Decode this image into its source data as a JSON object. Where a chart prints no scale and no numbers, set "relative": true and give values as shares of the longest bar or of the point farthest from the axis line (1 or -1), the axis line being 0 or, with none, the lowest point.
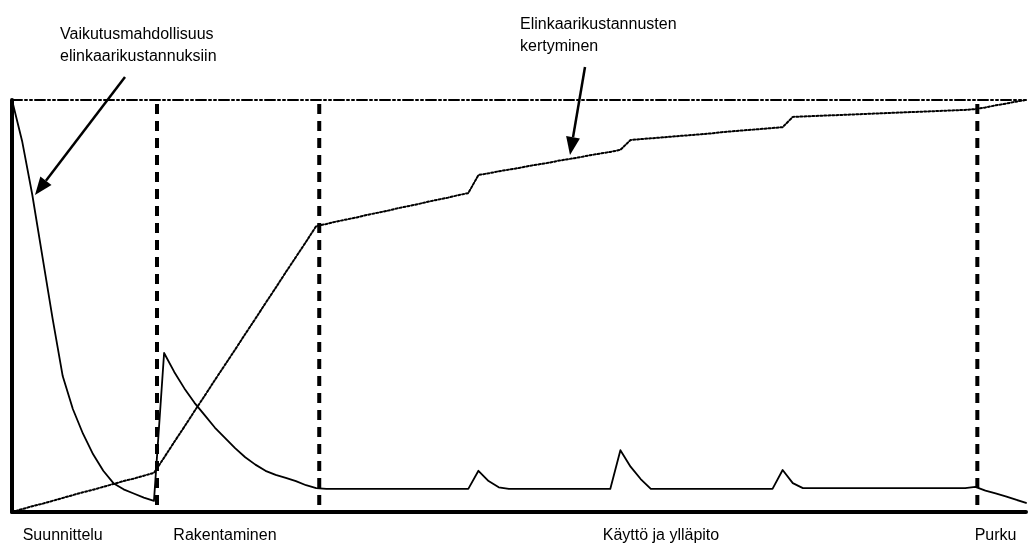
{
  "chart_data": {
    "type": "line",
    "relative": true,
    "tick_labels": "x",
    "grid": false,
    "marker": "none",
    "categories": [
      null,
      null,
      null,
      null,
      null,
      "Suunnittelu",
      null,
      null,
      null,
      null,
      null,
      null,
      null,
      null,
      null,
      null,
      null,
      null,
      null,
      null,
      null,
      "Rakentaminen",
      null,
      null,
      null,
      null,
      null,
      null,
      null,
      null,
      null,
      null,
      null,
      null,
      null,
      null,
      null,
      null,
      null,
      null,
      null,
      null,
      null,
      null,
      null,
      null,
      null,
      null,
      null,
      null,
      null,
      null,
      null,
      null,
      null,
      null,
      null,
      null,
      null,
      null,
      null,
      null,
      null,
      null,
      "Käyttö ja ylläpito",
      null,
      null,
      null,
      null,
      null,
      null,
      null,
      null,
      null,
      null,
      null,
      null,
      null,
      null,
      null,
      null,
      null,
      null,
      null,
      null,
      null,
      null,
      null,
      null,
      null,
      null,
      null,
      null,
      null,
      null,
      null,
      null,
      "Purku",
      null,
      null,
      null
    ],
    "series": [
      {
        "color": "#000000",
        "line_style": "solid",
        "values": [
          1,
          0.9,
          0.77,
          0.62,
          0.47,
          0.33,
          0.25,
          0.19,
          0.14,
          0.1,
          0.07,
          0.055,
          0.045,
          0.035,
          0.027,
          0.386,
          0.34,
          0.3,
          0.265,
          0.235,
          0.205,
          0.18,
          0.155,
          0.133,
          0.115,
          0.1,
          0.09,
          0.083,
          0.075,
          0.065,
          0.058,
          0.056,
          0.056,
          0.056,
          0.056,
          0.056,
          0.056,
          0.056,
          0.056,
          0.056,
          0.056,
          0.056,
          0.056,
          0.056,
          0.056,
          0.056,
          0.1,
          0.075,
          0.06,
          0.056,
          0.056,
          0.056,
          0.056,
          0.056,
          0.056,
          0.056,
          0.056,
          0.056,
          0.056,
          0.056,
          0.15,
          0.11,
          0.08,
          0.056,
          0.056,
          0.056,
          0.056,
          0.056,
          0.056,
          0.056,
          0.056,
          0.056,
          0.056,
          0.056,
          0.056,
          0.056,
          0.102,
          0.07,
          0.058,
          0.058,
          0.058,
          0.058,
          0.058,
          0.058,
          0.058,
          0.058,
          0.058,
          0.058,
          0.058,
          0.058,
          0.058,
          0.058,
          0.058,
          0.058,
          0.058,
          0.061,
          0.052,
          0.045,
          0.038,
          0.03,
          0.022
        ]
      },
      {
        "color": "#000000",
        "line_style": "dotted",
        "values": [
          0,
          0.007,
          0.014,
          0.02,
          0.027,
          0.034,
          0.041,
          0.048,
          0.054,
          0.061,
          0.068,
          0.075,
          0.081,
          0.088,
          0.095,
          0.132,
          0.17,
          0.207,
          0.245,
          0.282,
          0.32,
          0.357,
          0.394,
          0.432,
          0.469,
          0.507,
          0.544,
          0.582,
          0.619,
          0.656,
          0.694,
          0.699,
          0.705,
          0.71,
          0.715,
          0.721,
          0.726,
          0.731,
          0.737,
          0.742,
          0.747,
          0.753,
          0.758,
          0.763,
          0.769,
          0.774,
          0.818,
          0.822,
          0.827,
          0.831,
          0.835,
          0.84,
          0.844,
          0.848,
          0.853,
          0.857,
          0.861,
          0.866,
          0.87,
          0.874,
          0.879,
          0.903,
          0.905,
          0.907,
          0.909,
          0.911,
          0.913,
          0.915,
          0.917,
          0.919,
          0.922,
          0.924,
          0.926,
          0.928,
          0.93,
          0.932,
          0.934,
          0.959,
          0.96,
          0.961,
          0.962,
          0.963,
          0.964,
          0.965,
          0.966,
          0.967,
          0.968,
          0.969,
          0.97,
          0.971,
          0.972,
          0.973,
          0.974,
          0.975,
          0.976,
          0.978,
          0.982,
          0.987,
          0.991,
          0.996,
          1
        ]
      }
    ],
    "annotations": [
      "Vaikutusmahdollisuus\nelinkaarikustannuksiin",
      "Elinkaarikustannusten\nkertyminen"
    ]
  }
}
